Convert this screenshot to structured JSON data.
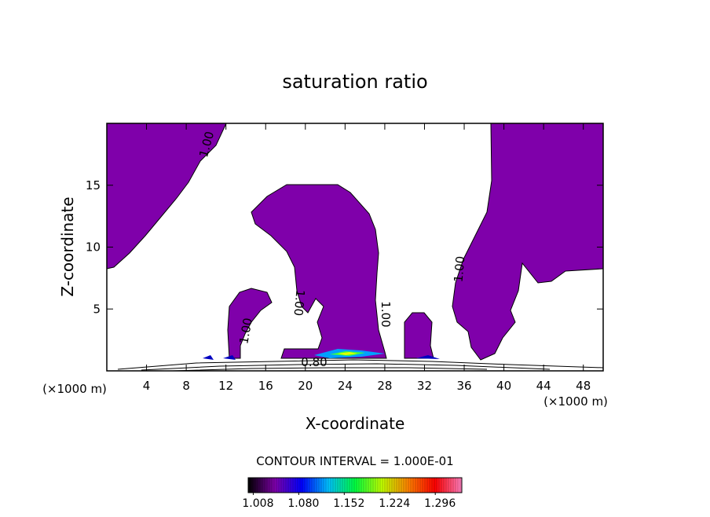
{
  "chart_data": {
    "type": "contour",
    "title": "saturation ratio",
    "x_label": "X-coordinate",
    "y_label": "Z-coordinate",
    "x_unit_label": "(×1000 m)",
    "y_unit_label": "(×1000 m)",
    "xlim": [
      0,
      50
    ],
    "xticks": [
      4,
      8,
      12,
      16,
      20,
      24,
      28,
      32,
      36,
      40,
      44,
      48
    ],
    "ylim": [
      0,
      20
    ],
    "yticks": [
      5,
      10,
      15
    ],
    "fill_color": "#7f00aa",
    "contour_labels": [
      "1.00",
      "1.00",
      "1.00",
      "1.00",
      "1.00",
      "0.80"
    ],
    "contour_interval": "CONTOUR INTERVAL = 1.000E-01",
    "colorbar_lim": [
      1.0,
      1.338
    ],
    "colorbar_ticks": [
      {
        "value": 1.008,
        "label": "1.008"
      },
      {
        "value": 1.08,
        "label": "1.080"
      },
      {
        "value": 1.152,
        "label": "1.152"
      },
      {
        "value": 1.224,
        "label": "1.224"
      },
      {
        "value": 1.296,
        "label": "1.296"
      }
    ],
    "colorbar_colors": [
      "#000000",
      "#7f00aa",
      "#0000ff",
      "#00c0ff",
      "#00ff40",
      "#c0ff00",
      "#ff8000",
      "#ff0000",
      "#ff80c0"
    ]
  }
}
